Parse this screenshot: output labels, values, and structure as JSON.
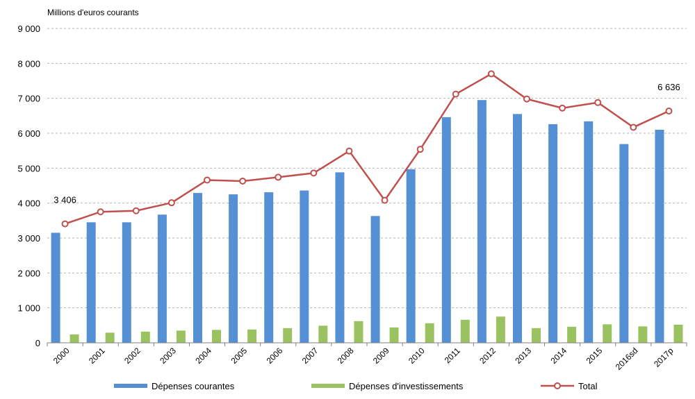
{
  "chart_data": {
    "type": "bar",
    "unit_label": "Millions d'euros courants",
    "categories": [
      "2000",
      "2001",
      "2002",
      "2003",
      "2004",
      "2005",
      "2006",
      "2007",
      "2008",
      "2009",
      "2010",
      "2011",
      "2012",
      "2013",
      "2014",
      "2015",
      "2016sd",
      "2017p"
    ],
    "series": [
      {
        "name": "Dépenses courantes",
        "type": "bar",
        "color": "#5590d4",
        "values": [
          3150,
          3450,
          3450,
          3670,
          4290,
          4250,
          4310,
          4360,
          4880,
          3630,
          4970,
          6460,
          6950,
          6550,
          6260,
          6340,
          5690,
          6100
        ]
      },
      {
        "name": "Dépenses d'investissements",
        "type": "bar",
        "color": "#9bc261",
        "values": [
          240,
          290,
          320,
          350,
          370,
          380,
          420,
          490,
          620,
          440,
          560,
          660,
          750,
          420,
          460,
          530,
          470,
          520
        ]
      },
      {
        "name": "Total",
        "type": "line",
        "color": "#c0504d",
        "values": [
          3406,
          3750,
          3780,
          4010,
          4660,
          4630,
          4740,
          4860,
          5490,
          4080,
          5540,
          7120,
          7700,
          6980,
          6720,
          6880,
          6170,
          6636
        ]
      }
    ],
    "data_labels": [
      {
        "series": "Total",
        "category": "2000",
        "text": "3 406"
      },
      {
        "series": "Total",
        "category": "2017p",
        "text": "6 636"
      }
    ],
    "y_ticks": [
      "0",
      "1 000",
      "2 000",
      "3 000",
      "4 000",
      "5 000",
      "6 000",
      "7 000",
      "8 000",
      "9 000"
    ],
    "ylim": [
      0,
      9000
    ],
    "grid": true,
    "legend_position": "bottom"
  }
}
